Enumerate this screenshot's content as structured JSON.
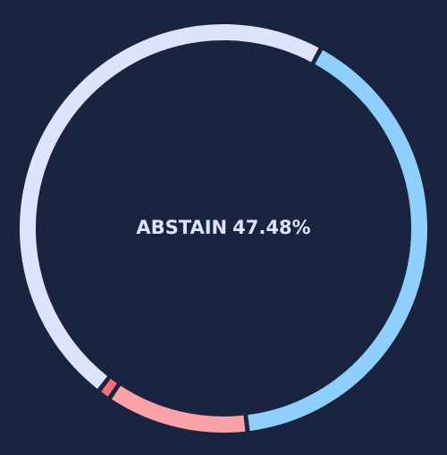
{
  "chart_data": {
    "type": "donut",
    "categories": [
      null,
      null,
      null,
      "ABSTAIN"
    ],
    "values": [
      40.2,
      11.3,
      1.02,
      47.48
    ],
    "value_labels": [
      null,
      null,
      null,
      "47.48%"
    ],
    "colors": [
      "#8ecfff",
      "#f9a3a8",
      "#f46e7e",
      "#dde3fb"
    ],
    "highlight": 3
  }
}
